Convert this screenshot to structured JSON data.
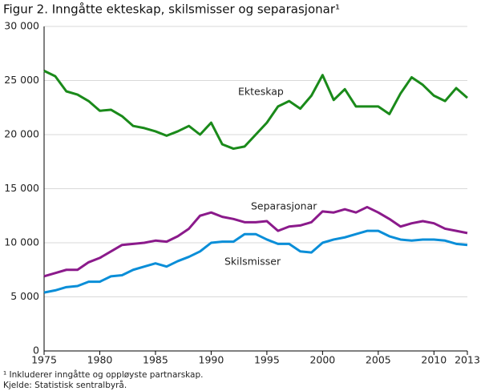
{
  "chart_data": {
    "type": "line",
    "title": "Figur 2. Inngåtte ekteskap, skilsmisser og separasjonar¹",
    "notes": [
      "¹ Inkluderer inngåtte og oppløyste partnarskap.",
      "Kjelde: Statistisk sentralbyrå."
    ],
    "x": [
      1975,
      1976,
      1977,
      1978,
      1979,
      1980,
      1981,
      1982,
      1983,
      1984,
      1985,
      1986,
      1987,
      1988,
      1989,
      1990,
      1991,
      1992,
      1993,
      1994,
      1995,
      1996,
      1997,
      1998,
      1999,
      2000,
      2001,
      2002,
      2003,
      2004,
      2005,
      2006,
      2007,
      2008,
      2009,
      2010,
      2011,
      2012,
      2013
    ],
    "series": [
      {
        "name": "Ekteskap",
        "color": "#1a8a1a",
        "values": [
          25900,
          25400,
          24000,
          23700,
          23100,
          22200,
          22300,
          21700,
          20800,
          20600,
          20300,
          19900,
          20300,
          20800,
          20000,
          21100,
          19100,
          18700,
          18900,
          20000,
          21100,
          22600,
          23100,
          22400,
          23600,
          25500,
          23200,
          24200,
          22600,
          22600,
          22600,
          21900,
          23800,
          25300,
          24600,
          23600,
          23100,
          24300,
          23400
        ]
      },
      {
        "name": "Separasjonar",
        "color": "#8b1a8b",
        "values": [
          6900,
          7200,
          7500,
          7500,
          8200,
          8600,
          9200,
          9800,
          9900,
          10000,
          10200,
          10100,
          10600,
          11300,
          12500,
          12800,
          12400,
          12200,
          11900,
          11900,
          12000,
          11100,
          11500,
          11600,
          11900,
          12900,
          12800,
          13100,
          12800,
          13300,
          12800,
          12200,
          11500,
          11800,
          12000,
          11800,
          11300,
          11100,
          10900
        ]
      },
      {
        "name": "Skilsmisser",
        "color": "#0a8ed8",
        "values": [
          5400,
          5600,
          5900,
          6000,
          6400,
          6400,
          6900,
          7000,
          7500,
          7800,
          8100,
          7800,
          8300,
          8700,
          9200,
          10000,
          10100,
          10100,
          10800,
          10800,
          10300,
          9900,
          9900,
          9200,
          9100,
          10000,
          10300,
          10500,
          10800,
          11100,
          11100,
          10600,
          10300,
          10200,
          10300,
          10300,
          10200,
          9900,
          9800
        ]
      }
    ],
    "xlim": [
      1975,
      2013
    ],
    "xticks": [
      1975,
      1980,
      1985,
      1990,
      1995,
      2000,
      2005,
      2010,
      2013
    ],
    "ylim": [
      0,
      30000
    ],
    "yticks": [
      0,
      {
        "value": 5000,
        "label": "5 000"
      },
      {
        "value": 10000,
        "label": "10 000"
      },
      {
        "value": 15000,
        "label": "15 000"
      },
      {
        "value": 20000,
        "label": "20 000"
      },
      {
        "value": 25000,
        "label": "25 000"
      },
      {
        "value": 30000,
        "label": "30 000"
      }
    ],
    "grid": true
  }
}
